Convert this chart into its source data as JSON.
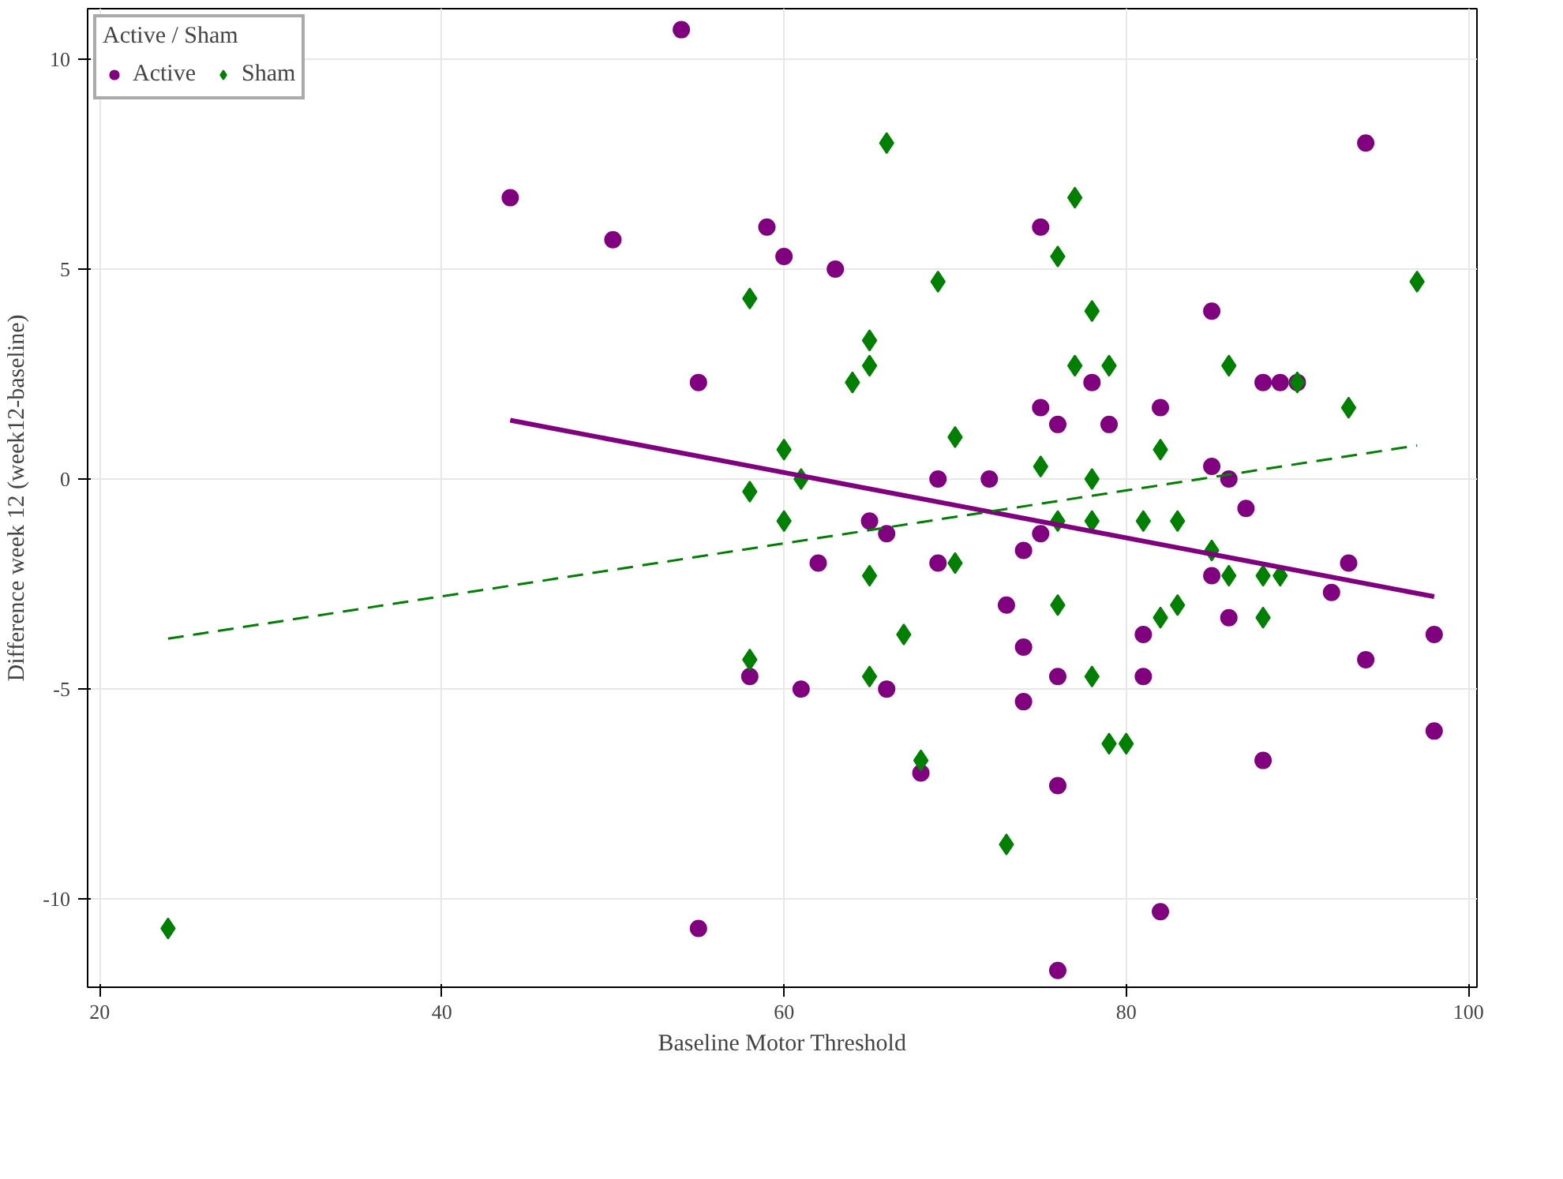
{
  "chart_data": {
    "type": "scatter",
    "xlabel": "Baseline Motor Threshold",
    "ylabel": "Difference week 12 (week12-baseline)",
    "legend_title": "Active / Sham",
    "legend": "top left",
    "grid": true,
    "xlim": [
      19.3,
      100.5
    ],
    "ylim": [
      -12.1,
      11.2
    ],
    "xticks": [
      20,
      40,
      60,
      80,
      100
    ],
    "yticks": [
      -10,
      -5,
      0,
      5,
      10
    ],
    "series": [
      {
        "name": "Active",
        "color": "#800080",
        "marker": "circle",
        "x": [
          44,
          50,
          54,
          55,
          55,
          58,
          59,
          60,
          61,
          62,
          63,
          65,
          66,
          66,
          68,
          69,
          69,
          72,
          73,
          74,
          74,
          74,
          75,
          75,
          75,
          76,
          76,
          76,
          76,
          78,
          79,
          81,
          81,
          82,
          82,
          85,
          85,
          85,
          86,
          86,
          87,
          88,
          88,
          89,
          90,
          92,
          93,
          94,
          94,
          98,
          98
        ],
        "values": [
          6.7,
          5.7,
          10.7,
          2.3,
          -10.7,
          -4.7,
          6,
          5.3,
          -5,
          -2,
          5,
          -1,
          -1.3,
          -5,
          -7,
          0,
          -2,
          0,
          -3,
          -1.7,
          -4,
          -5.3,
          6,
          1.7,
          -1.3,
          1.3,
          -4.7,
          -7.3,
          -11.7,
          2.3,
          1.3,
          -3.7,
          -4.7,
          1.7,
          -10.3,
          4,
          0.3,
          -2.3,
          0,
          -3.3,
          -0.7,
          2.3,
          -6.7,
          2.3,
          2.3,
          -2.7,
          -2,
          8,
          -4.3,
          -3.7,
          -6
        ]
      },
      {
        "name": "Sham",
        "color": "#008000",
        "marker": "diamond",
        "x": [
          24,
          58,
          58,
          58,
          60,
          60,
          61,
          64,
          65,
          65,
          65,
          65,
          66,
          67,
          68,
          69,
          70,
          70,
          73,
          75,
          76,
          76,
          76,
          77,
          77,
          78,
          78,
          78,
          78,
          79,
          79,
          80,
          81,
          82,
          82,
          83,
          83,
          85,
          86,
          86,
          88,
          88,
          89,
          90,
          93,
          97
        ],
        "values": [
          -10.7,
          4.3,
          -0.3,
          -4.3,
          0.7,
          -1,
          0,
          2.3,
          3.3,
          2.7,
          -2.3,
          -4.7,
          8,
          -3.7,
          -6.7,
          4.7,
          1,
          -2,
          -8.7,
          0.3,
          5.3,
          -1,
          -3,
          6.7,
          2.7,
          4,
          0,
          -1,
          -4.7,
          2.7,
          -6.3,
          -6.3,
          -1,
          0.7,
          -3.3,
          -1,
          -3,
          -1.7,
          2.7,
          -2.3,
          -2.3,
          -3.3,
          -2.3,
          2.3,
          1.7,
          4.7
        ]
      },
      {
        "type": "line",
        "color": "#800080",
        "line_style": "solid",
        "x": [
          44,
          98
        ],
        "values": [
          1.4,
          -2.8
        ]
      },
      {
        "type": "line",
        "color": "#008000",
        "line_style": "dashed",
        "x": [
          24,
          97
        ],
        "values": [
          -3.8,
          0.8
        ]
      }
    ]
  }
}
